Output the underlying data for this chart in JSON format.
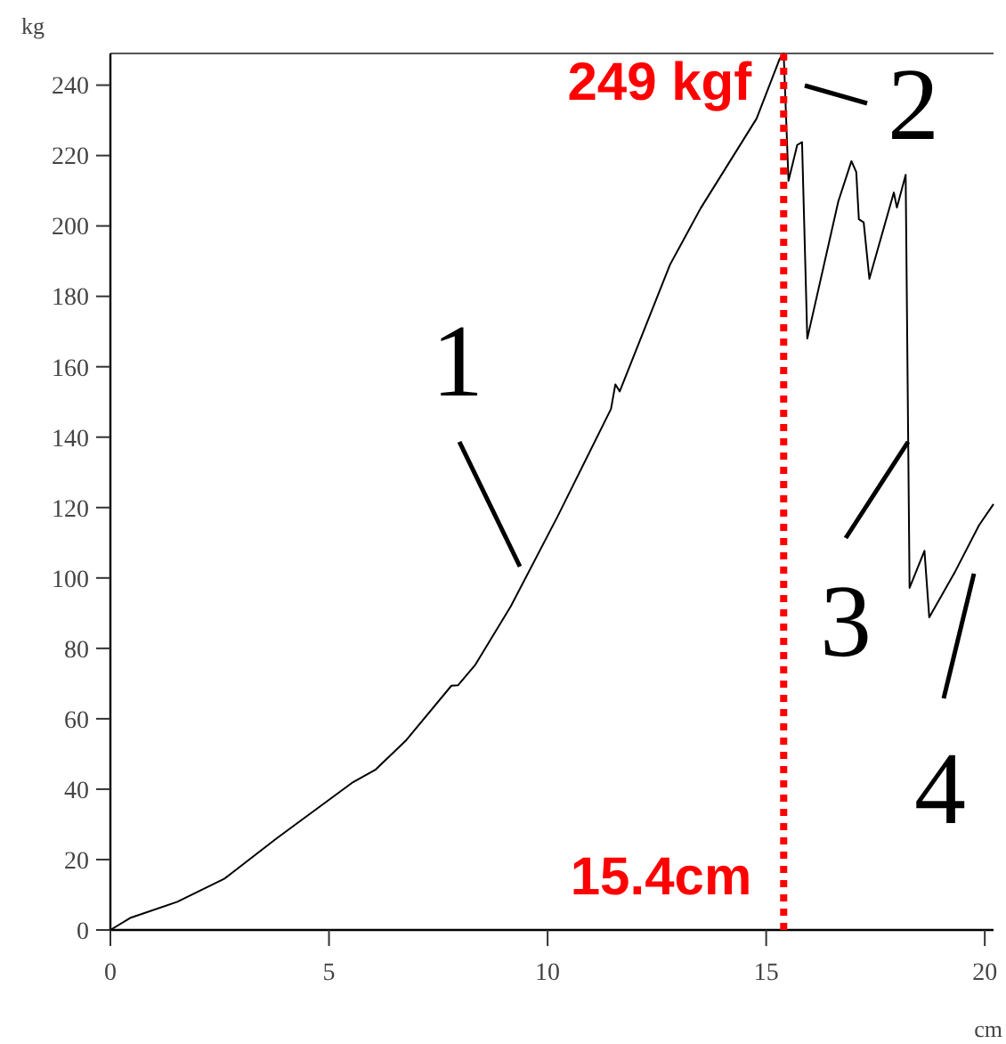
{
  "chart_data": {
    "type": "line",
    "xlabel": "cm",
    "ylabel": "kg",
    "xlim": [
      0,
      20.2
    ],
    "ylim": [
      0,
      249
    ],
    "xticks": [
      0,
      5,
      10,
      15,
      20
    ],
    "yticks": [
      0,
      20,
      40,
      60,
      80,
      100,
      120,
      140,
      160,
      180,
      200,
      220,
      240
    ],
    "grid": false,
    "marker": "none",
    "line_style": "solid",
    "series": [
      {
        "color": "#000000",
        "x": [
          0,
          0.45,
          1.53,
          2.6,
          3.8,
          5.55,
          6.07,
          6.75,
          7.8,
          7.95,
          8.35,
          9.16,
          10.23,
          11.45,
          11.55,
          11.65,
          12.8,
          13.5,
          14.78,
          15.31,
          15.4,
          15.51,
          15.71,
          15.82,
          15.94,
          16.65,
          16.95,
          17.06,
          17.12,
          17.23,
          17.36,
          17.92,
          17.99,
          18.19,
          18.28,
          18.62,
          18.73,
          19.33,
          19.87,
          20.2
        ],
        "values": [
          0,
          3.4,
          8,
          14.5,
          26,
          42,
          45.6,
          53.7,
          69.4,
          69.5,
          75.4,
          92,
          117.5,
          148,
          155,
          153,
          189,
          205,
          230.5,
          247.5,
          249,
          212.8,
          223,
          223.8,
          168,
          207,
          218.4,
          215.3,
          201.9,
          201,
          185,
          209.5,
          205.2,
          214.5,
          97.2,
          107.7,
          88.8,
          102,
          115,
          121
        ]
      }
    ],
    "ref_lines": [
      {
        "axis": "x",
        "value": 15.4,
        "label": "15.4cm",
        "color": "#ff0000",
        "line_style": "dotted"
      }
    ],
    "annotations": [
      {
        "text": "249 kgf",
        "x": 15.4,
        "y": 249
      },
      "1",
      "2",
      "3",
      "4"
    ]
  }
}
